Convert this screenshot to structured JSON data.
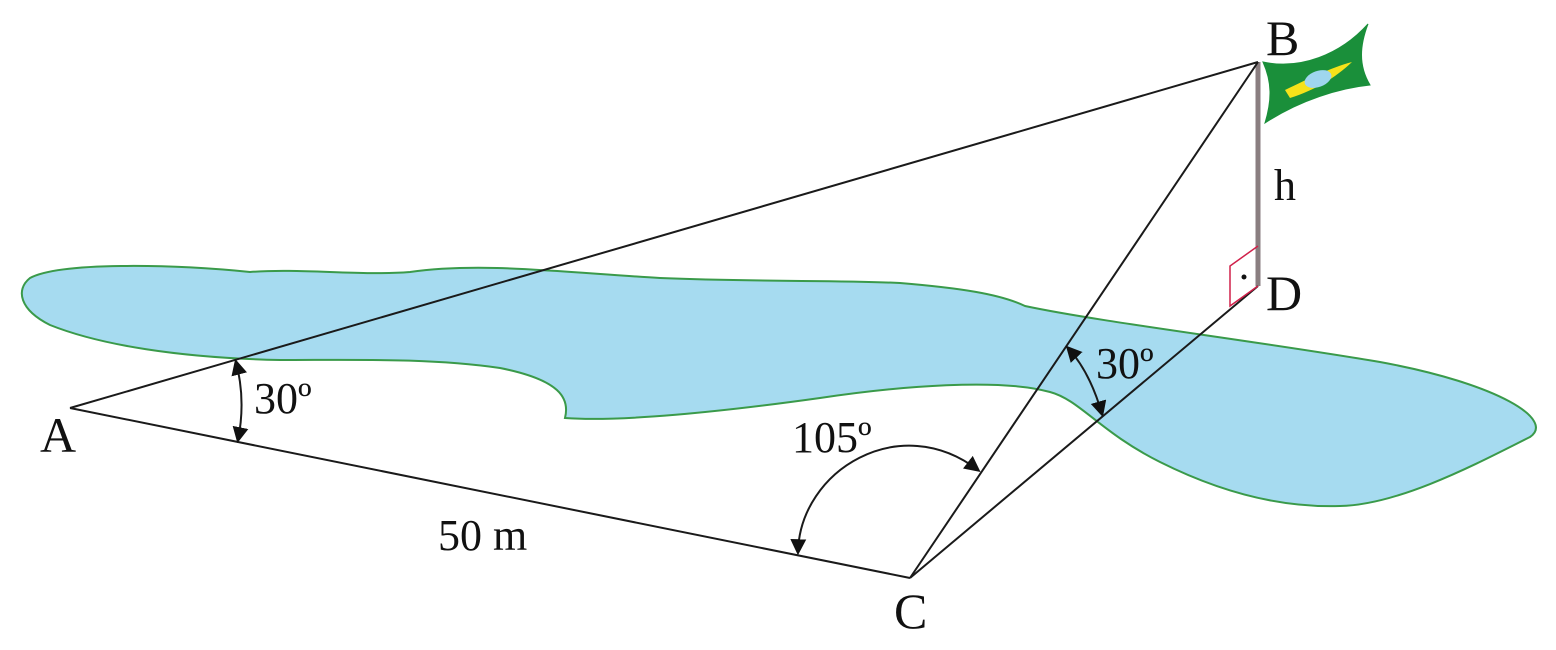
{
  "points": {
    "A": "A",
    "B": "B",
    "C": "C",
    "D": "D"
  },
  "angles": {
    "angle_A": "30º",
    "angle_C": "105º",
    "angle_D": "30º"
  },
  "lengths": {
    "AC": "50 m",
    "height": "h"
  },
  "colors": {
    "lake_fill": "#a6dbf0",
    "lake_stroke": "#3a9a4a",
    "flag_green": "#1a8f3a",
    "flag_yellow": "#f5e21a",
    "flag_blue": "#9fd6ee",
    "pole": "#8a7e80",
    "right_angle": "#d0204a"
  }
}
